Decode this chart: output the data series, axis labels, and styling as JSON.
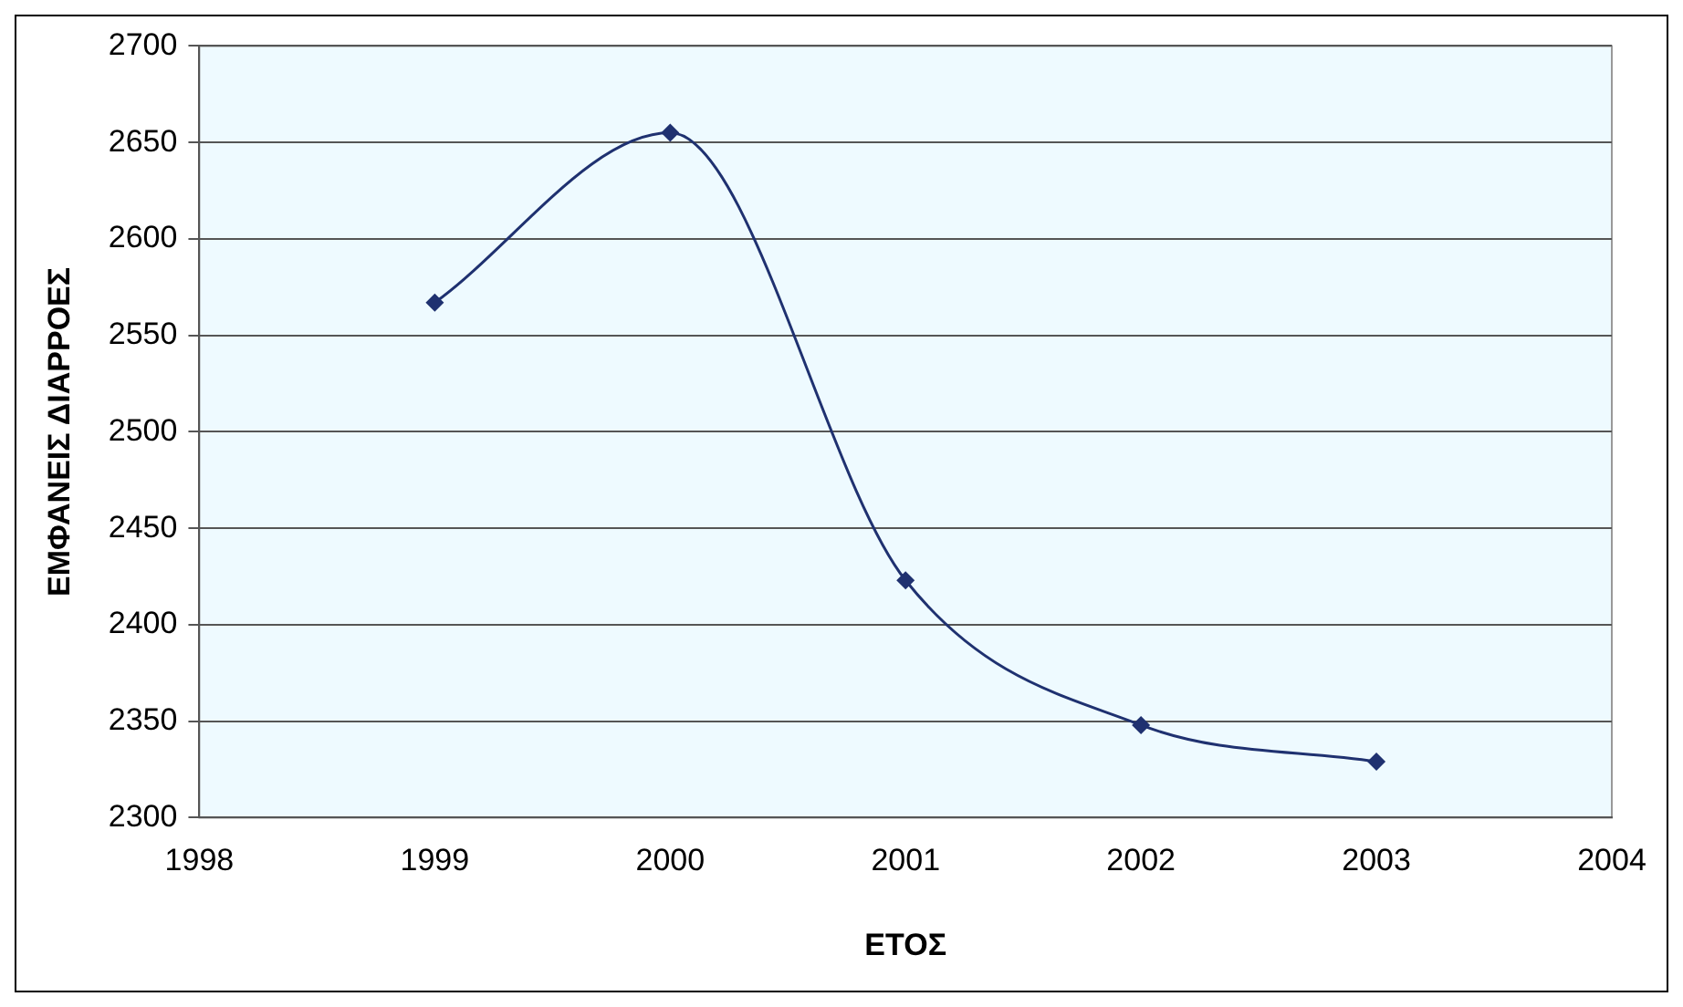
{
  "chart_data": {
    "type": "line",
    "xlabel": "ΕΤΟΣ",
    "ylabel": "ΕΜΦΑΝΕΙΣ ΔΙΑΡΡΟΕΣ",
    "x": [
      1999,
      2000,
      2001,
      2002,
      2003
    ],
    "series": [
      {
        "color": "#1f3170",
        "values": [
          2567,
          2655,
          2423,
          2348,
          2329
        ]
      }
    ],
    "xlim": [
      1998,
      2004
    ],
    "xticks": [
      1998,
      1999,
      2000,
      2001,
      2002,
      2003,
      2004
    ],
    "ylim": [
      2300,
      2700
    ],
    "yticks": [
      2300,
      2350,
      2400,
      2450,
      2500,
      2550,
      2600,
      2650,
      2700
    ],
    "grid": "y",
    "legend": false,
    "marker": "diamond",
    "line_style": "solid"
  }
}
